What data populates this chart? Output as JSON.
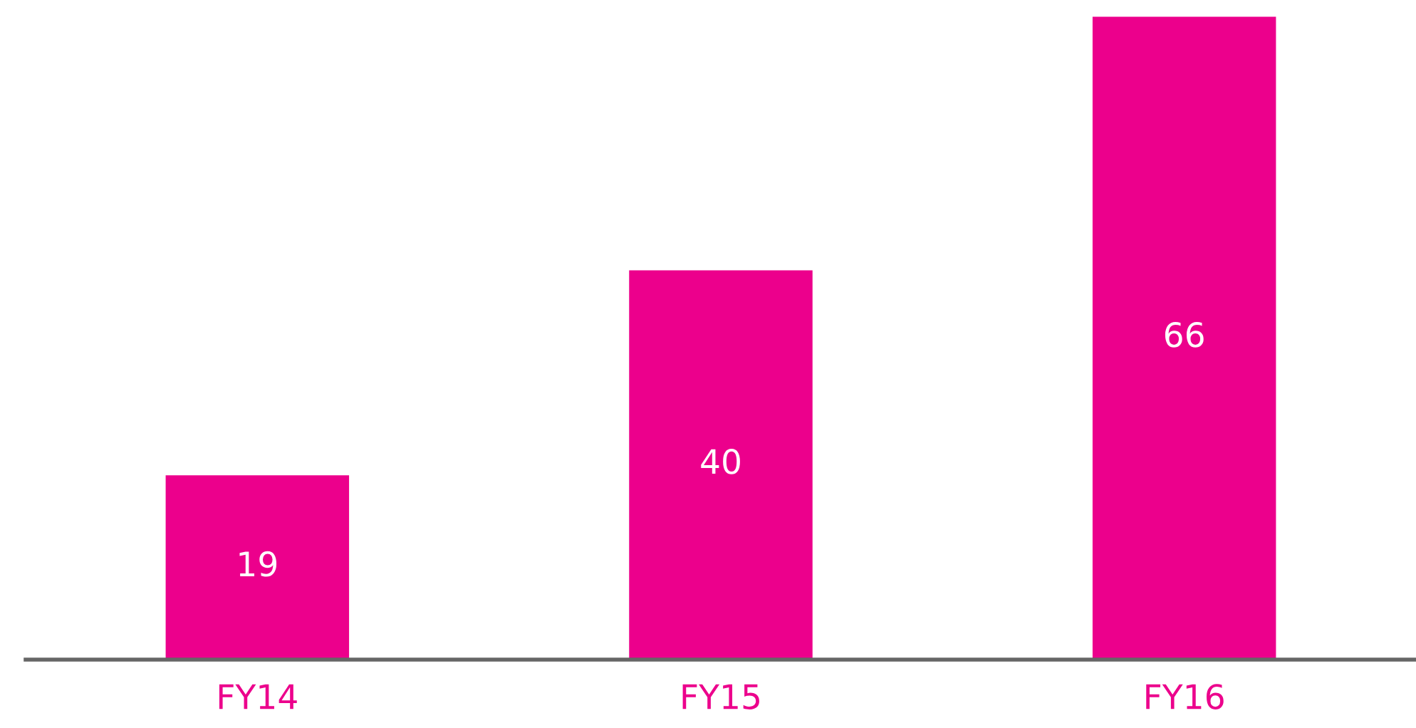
{
  "chart_data": {
    "type": "bar",
    "categories": [
      "FY14",
      "FY15",
      "FY16"
    ],
    "values": [
      19,
      40,
      66
    ],
    "color": "#ec008c",
    "ylim": [
      0,
      66
    ],
    "data_labels": true,
    "grid": false,
    "tick_labels": "x"
  }
}
